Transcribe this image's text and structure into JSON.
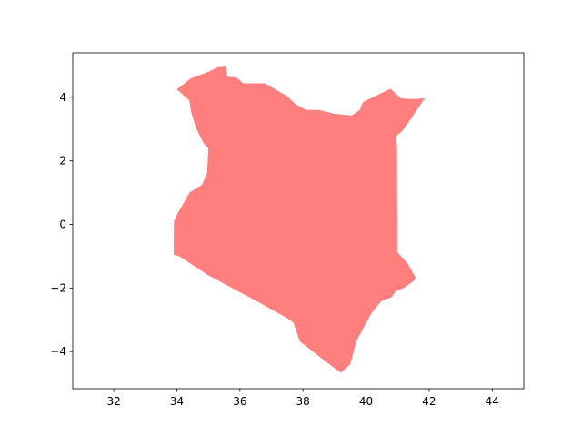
{
  "chart_data": {
    "type": "map",
    "title": "",
    "xlabel": "",
    "ylabel": "",
    "xlim": [
      30.7,
      45.0
    ],
    "ylim": [
      -5.17,
      5.4
    ],
    "xticks": [
      32,
      34,
      36,
      38,
      40,
      42,
      44
    ],
    "yticks": [
      -4,
      -2,
      0,
      2,
      4
    ],
    "x_tick_labels": [
      "32",
      "34",
      "36",
      "38",
      "40",
      "42",
      "44"
    ],
    "y_tick_labels": [
      "−4",
      "−2",
      "0",
      "2",
      "4"
    ],
    "grid": false,
    "legend": "none",
    "fill_color": "#ff7f7f",
    "shape": "Kenya country outline",
    "polygon_lonlat": [
      [
        34.0,
        4.25
      ],
      [
        34.45,
        4.6
      ],
      [
        35.0,
        4.8
      ],
      [
        35.3,
        4.95
      ],
      [
        35.55,
        4.97
      ],
      [
        35.6,
        4.65
      ],
      [
        35.9,
        4.62
      ],
      [
        36.1,
        4.44
      ],
      [
        36.8,
        4.44
      ],
      [
        37.5,
        4.03
      ],
      [
        37.77,
        3.78
      ],
      [
        38.1,
        3.6
      ],
      [
        38.5,
        3.6
      ],
      [
        39.0,
        3.48
      ],
      [
        39.55,
        3.43
      ],
      [
        39.8,
        3.6
      ],
      [
        39.9,
        3.85
      ],
      [
        40.77,
        4.27
      ],
      [
        41.1,
        3.97
      ],
      [
        41.3,
        3.95
      ],
      [
        41.6,
        3.95
      ],
      [
        41.86,
        3.97
      ],
      [
        41.2,
        3.0
      ],
      [
        41.1,
        2.9
      ],
      [
        40.95,
        2.78
      ],
      [
        40.98,
        2.5
      ],
      [
        40.99,
        0.0
      ],
      [
        40.99,
        -0.87
      ],
      [
        41.3,
        -1.2
      ],
      [
        41.57,
        -1.67
      ],
      [
        41.55,
        -1.75
      ],
      [
        41.2,
        -2.0
      ],
      [
        40.95,
        -2.1
      ],
      [
        40.8,
        -2.3
      ],
      [
        40.5,
        -2.4
      ],
      [
        40.2,
        -2.75
      ],
      [
        40.0,
        -3.1
      ],
      [
        39.7,
        -3.65
      ],
      [
        39.5,
        -4.4
      ],
      [
        39.2,
        -4.67
      ],
      [
        38.7,
        -4.3
      ],
      [
        37.9,
        -3.68
      ],
      [
        37.7,
        -3.1
      ],
      [
        37.5,
        -2.95
      ],
      [
        36.5,
        -2.4
      ],
      [
        35.0,
        -1.6
      ],
      [
        34.07,
        -1.0
      ],
      [
        33.9,
        -0.95
      ],
      [
        33.91,
        0.1
      ],
      [
        34.0,
        0.3
      ],
      [
        34.4,
        1.0
      ],
      [
        34.8,
        1.25
      ],
      [
        34.96,
        1.63
      ],
      [
        35.0,
        2.4
      ],
      [
        34.85,
        2.55
      ],
      [
        34.6,
        3.05
      ],
      [
        34.45,
        3.55
      ],
      [
        34.4,
        3.9
      ],
      [
        34.0,
        4.25
      ]
    ]
  }
}
